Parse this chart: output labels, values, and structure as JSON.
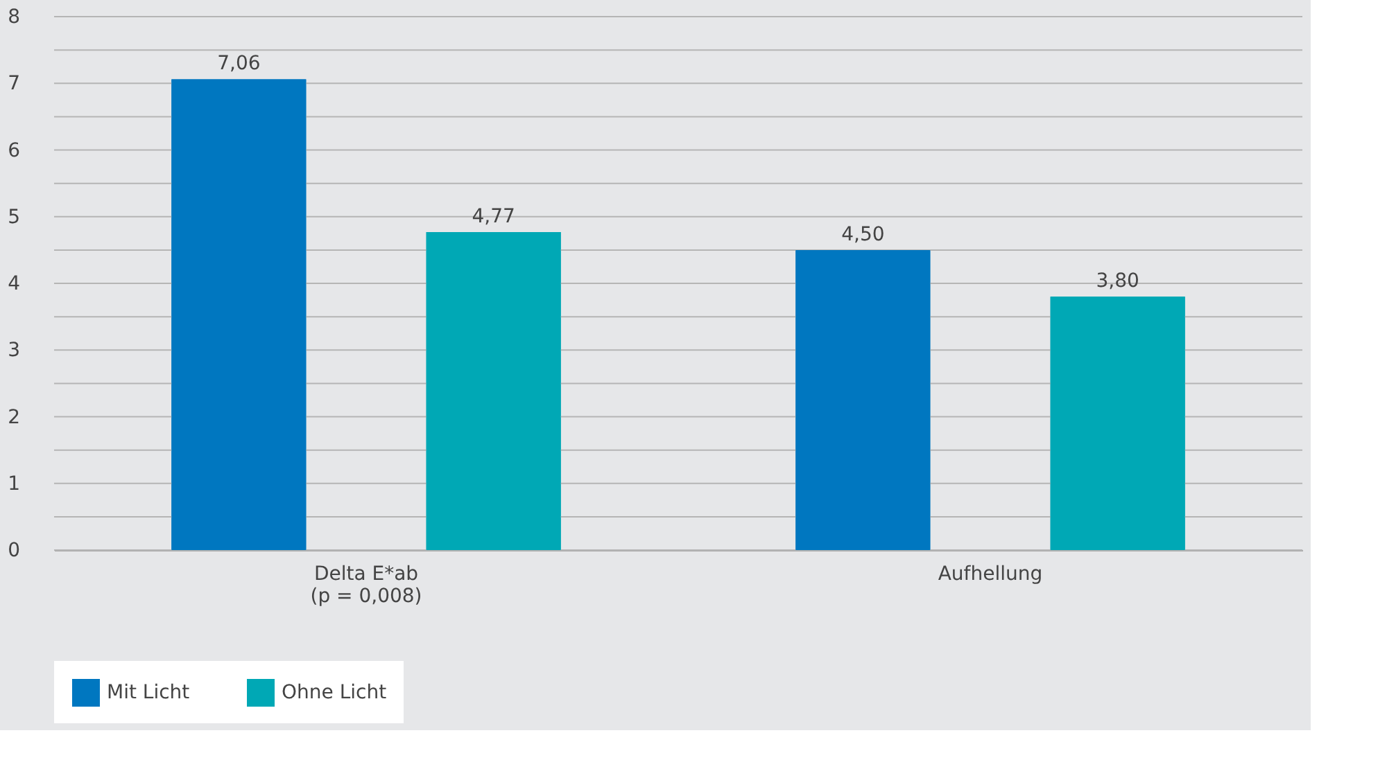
{
  "chart_data": {
    "type": "bar",
    "categories": [
      "Delta E*ab\n(p = 0,008)",
      "Aufhellung"
    ],
    "series": [
      {
        "name": "Mit Licht",
        "color": "#0077c0",
        "values": [
          7.06,
          4.5
        ],
        "value_labels": [
          "7,06",
          "4,50"
        ]
      },
      {
        "name": "Ohne Licht",
        "color": "#00a8b5",
        "values": [
          4.77,
          3.8
        ],
        "value_labels": [
          "4,77",
          "3,80"
        ]
      }
    ],
    "ylim": [
      0,
      8
    ],
    "yticks": [
      0,
      {
        "value": 0.5,
        "label": null
      },
      1,
      {
        "value": 1.5,
        "label": null
      },
      2,
      {
        "value": 2.5,
        "label": null
      },
      3,
      {
        "value": 3.5,
        "label": null
      },
      4,
      {
        "value": 4.5,
        "label": null
      },
      5,
      {
        "value": 5.5,
        "label": null
      },
      6,
      {
        "value": 6.5,
        "label": null
      },
      7,
      {
        "value": 7.5,
        "label": null
      },
      8
    ],
    "grid": true,
    "legend": "bottom"
  }
}
